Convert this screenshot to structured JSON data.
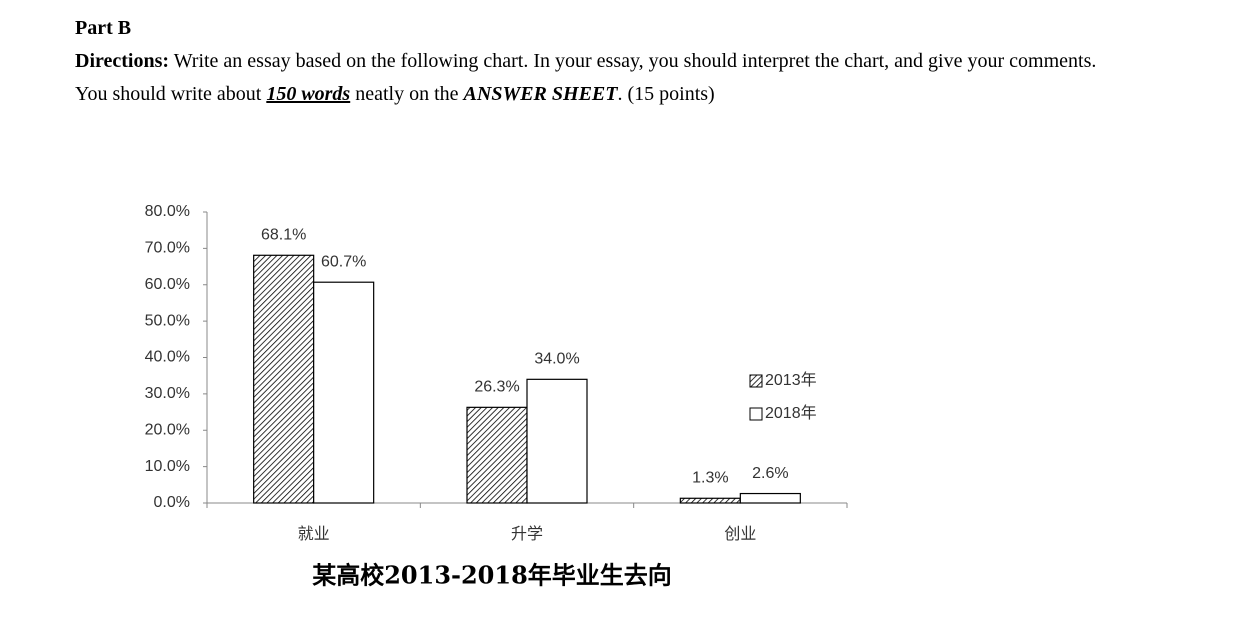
{
  "part": "Part B",
  "directions": {
    "label": "Directions:",
    "text": "Write an essay based on the following chart. In your essay, you should interpret the chart, and give your comments."
  },
  "instruction": {
    "before": "You should write about ",
    "words": "150 words",
    "middle": " neatly on the ",
    "sheet": "ANSWER SHEET",
    "after": ". (15 points)"
  },
  "chart_data": {
    "type": "bar",
    "title": "某高校2013-2018年毕业生去向",
    "categories": [
      "就业",
      "升学",
      "创业"
    ],
    "series": [
      {
        "name": "2013年",
        "color": "#000000",
        "hatch": true,
        "values": [
          68.1,
          26.3,
          1.3
        ],
        "value_labels": [
          "68.1%",
          "26.3%",
          "1.3%"
        ]
      },
      {
        "name": "2018年",
        "color": "#ffffff",
        "hatch": false,
        "values": [
          60.7,
          34.0,
          2.6
        ],
        "value_labels": [
          "60.7%",
          "34.0%",
          "2.6%"
        ]
      }
    ],
    "ylim": [
      0,
      80
    ],
    "yticks": [
      {
        "value": 0,
        "label": "0.0%"
      },
      {
        "value": 10,
        "label": "10.0%"
      },
      {
        "value": 20,
        "label": "20.0%"
      },
      {
        "value": 30,
        "label": "30.0%"
      },
      {
        "value": 40,
        "label": "40.0%"
      },
      {
        "value": 50,
        "label": "50.0%"
      },
      {
        "value": 60,
        "label": "60.0%"
      },
      {
        "value": 70,
        "label": "70.0%"
      },
      {
        "value": 80,
        "label": "80.0%"
      }
    ],
    "grid": false,
    "legend": "right"
  }
}
